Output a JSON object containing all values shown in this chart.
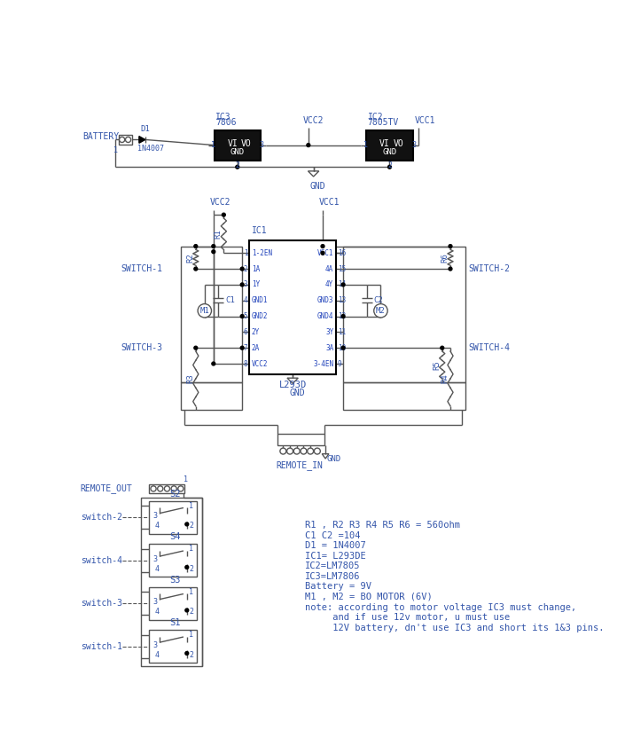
{
  "bg_color": "#ffffff",
  "line_color": "#555555",
  "blue": "#3355aa",
  "ic_fill": "#111111",
  "fig_width": 7.05,
  "fig_height": 8.5,
  "notes": [
    "R1 , R2 R3 R4 R5 R6 = 560ohm",
    "C1 C2 =104",
    "D1 = 1N4007",
    "IC1= L293DE",
    "IC2=LM7805",
    "IC3=LM7806",
    "Battery = 9V",
    "M1 , M2 = BO MOTOR (6V)",
    "note: according to motor voltage IC3 must change,",
    "     and if use 12v motor, u must use",
    "     12V battery, dn't use IC3 and short its 1&3 pins."
  ]
}
